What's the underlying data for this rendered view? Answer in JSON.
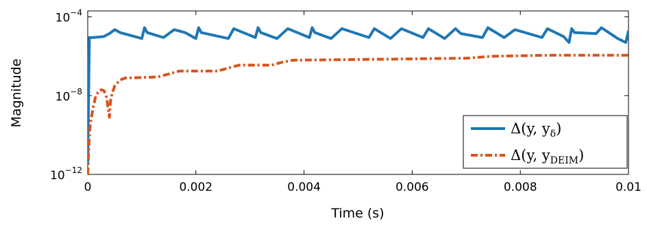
{
  "chart_data": {
    "type": "line",
    "xlabel": "Time (s)",
    "ylabel": "Magnitude",
    "xlim": [
      0,
      0.01
    ],
    "ylim_log10": [
      -12,
      -3.7
    ],
    "yscale": "log",
    "grid": false,
    "legend_position": "bottom-right",
    "x_ticks": [
      {
        "value": 0,
        "label": "0"
      },
      {
        "value": 0.002,
        "label": "0.002"
      },
      {
        "value": 0.004,
        "label": "0.004"
      },
      {
        "value": 0.006,
        "label": "0.006"
      },
      {
        "value": 0.008,
        "label": "0.008"
      },
      {
        "value": 0.01,
        "label": "0.01"
      }
    ],
    "y_ticks": [
      {
        "exp": -12,
        "base": "10",
        "power": "−12"
      },
      {
        "exp": -8,
        "base": "10",
        "power": "−8"
      },
      {
        "exp": -4,
        "base": "10",
        "power": "−4"
      }
    ],
    "series": [
      {
        "name": "Δ(y, yδ)",
        "legend_main": "Δ(y, y",
        "legend_sub": "δ",
        "legend_close": ")",
        "color": "#1f77b4",
        "style": "solid",
        "x": [
          0,
          3e-05,
          0.0001,
          0.0003,
          0.0004,
          0.0005,
          0.0006,
          0.001,
          0.00105,
          0.0011,
          0.0014,
          0.0016,
          0.0018,
          0.002,
          0.00205,
          0.0021,
          0.0026,
          0.0027,
          0.0031,
          0.00315,
          0.0032,
          0.0035,
          0.0037,
          0.0041,
          0.00415,
          0.0042,
          0.0045,
          0.0047,
          0.0052,
          0.0053,
          0.0056,
          0.0058,
          0.0062,
          0.0063,
          0.0066,
          0.0068,
          0.0069,
          0.0073,
          0.0074,
          0.0077,
          0.0079,
          0.0084,
          0.0085,
          0.0088,
          0.0089,
          0.00895,
          0.009,
          0.0094,
          0.0095,
          0.0098,
          0.00995,
          0.01
        ],
        "log10_y": [
          -11.5,
          -5.05,
          -5.05,
          -5.0,
          -4.85,
          -4.65,
          -4.8,
          -5.1,
          -4.55,
          -4.8,
          -5.05,
          -4.65,
          -4.8,
          -5.1,
          -4.55,
          -4.8,
          -5.1,
          -4.6,
          -5.05,
          -4.55,
          -4.8,
          -5.1,
          -4.6,
          -5.05,
          -4.55,
          -4.8,
          -5.1,
          -4.6,
          -5.05,
          -4.6,
          -5.1,
          -4.6,
          -5.05,
          -4.6,
          -5.1,
          -4.6,
          -4.85,
          -5.05,
          -4.55,
          -5.05,
          -4.65,
          -5.05,
          -4.6,
          -5.0,
          -5.3,
          -4.6,
          -4.8,
          -4.85,
          -4.55,
          -5.1,
          -5.3,
          -4.7
        ]
      },
      {
        "name": "Δ(y, yDEIM)",
        "legend_main": "Δ(y, y",
        "legend_sub": "DEIM",
        "legend_close": ")",
        "color": "#d95319",
        "style": "dashdot",
        "x": [
          0,
          3e-05,
          5e-05,
          0.0001,
          0.00015,
          0.0002,
          0.00025,
          0.0003,
          0.00035,
          0.0004,
          0.00042,
          0.00045,
          0.0005,
          0.0006,
          0.0007,
          0.0008,
          0.0013,
          0.0015,
          0.0017,
          0.0024,
          0.0026,
          0.0028,
          0.0034,
          0.0036,
          0.0038,
          0.0055,
          0.007,
          0.0075,
          0.0085,
          0.0095,
          0.01
        ],
        "log10_y": [
          -12,
          -10.0,
          -9.4,
          -8.6,
          -8.0,
          -7.8,
          -7.7,
          -7.75,
          -8.1,
          -9.1,
          -8.3,
          -7.9,
          -7.5,
          -7.2,
          -7.1,
          -7.1,
          -7.05,
          -6.9,
          -6.75,
          -6.75,
          -6.6,
          -6.45,
          -6.45,
          -6.3,
          -6.2,
          -6.15,
          -6.1,
          -6.0,
          -5.95,
          -5.95,
          -5.95
        ]
      }
    ]
  }
}
